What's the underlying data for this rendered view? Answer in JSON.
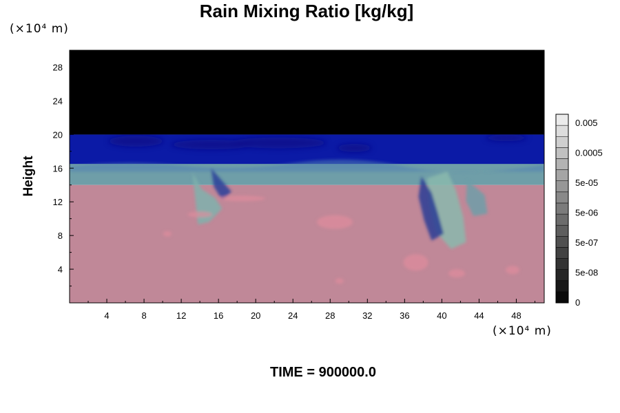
{
  "chart_data": {
    "type": "heatmap",
    "title": "Rain Mixing Ratio [kg/kg]",
    "ylabel": "Height",
    "xunit": "(×10⁴ m)",
    "yunit": "(×10⁴ m)",
    "xlim": [
      0,
      51
    ],
    "ylim": [
      0,
      30
    ],
    "xticks": [
      4,
      8,
      12,
      16,
      20,
      24,
      28,
      32,
      36,
      40,
      44,
      48
    ],
    "yticks": [
      4,
      8,
      12,
      16,
      20,
      24,
      28
    ],
    "grid": false,
    "footer": "TIME = 900000.0",
    "colorbar": {
      "position": "right",
      "labels": [
        "0.005",
        "0.0005",
        "5e-05",
        "5e-06",
        "5e-07",
        "5e-08",
        "0"
      ]
    },
    "regions": [
      {
        "name": "upper",
        "y_range": [
          20,
          30
        ],
        "color": "#000000"
      },
      {
        "name": "blue band",
        "y_range": [
          16,
          20
        ],
        "color": "#0b1aa6"
      },
      {
        "name": "teal band",
        "y_range": [
          14,
          16.5
        ],
        "color": "#6f9ea8"
      },
      {
        "name": "lower",
        "y_range": [
          0,
          14
        ],
        "color": "#c08898"
      }
    ]
  },
  "colors": {
    "background": "#ffffff",
    "upper": "#000000",
    "blue": "#0b1aa6",
    "teal": "#6f9ea8",
    "pink": "#c08898"
  }
}
